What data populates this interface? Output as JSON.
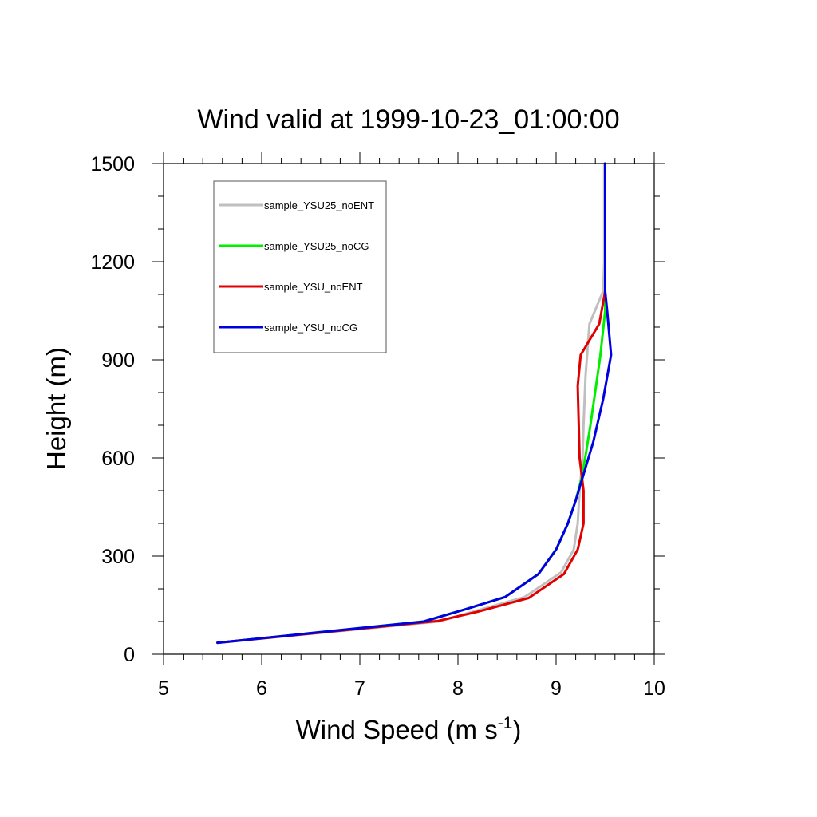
{
  "chart_data": {
    "type": "line",
    "title": "Wind valid at 1999-10-23_01:00:00",
    "xlabel": "Wind Speed (m s",
    "xlabel_superscript": "-1",
    "xlabel_suffix": ")",
    "ylabel": "Height (m)",
    "xlim": [
      5,
      10
    ],
    "ylim": [
      0,
      1500
    ],
    "xticks": [
      5,
      6,
      7,
      8,
      9,
      10
    ],
    "yticks": [
      0,
      300,
      600,
      900,
      1200,
      1500
    ],
    "grid": false,
    "legend": "top-left",
    "series": [
      {
        "name": "sample_YSU25_noENT",
        "color": "#bfbfbf",
        "points": [
          [
            5.55,
            35
          ],
          [
            7.8,
            100
          ],
          [
            8.68,
            175
          ],
          [
            9.05,
            250
          ],
          [
            9.18,
            320
          ],
          [
            9.22,
            400
          ],
          [
            9.24,
            500
          ],
          [
            9.27,
            600
          ],
          [
            9.28,
            700
          ],
          [
            9.3,
            850
          ],
          [
            9.34,
            1010
          ],
          [
            9.48,
            1110
          ],
          [
            9.49,
            1200
          ],
          [
            9.49,
            1500
          ]
        ]
      },
      {
        "name": "sample_YSU25_noCG",
        "color": "#00ee00",
        "points": [
          [
            5.55,
            35
          ],
          [
            7.65,
            100
          ],
          [
            8.05,
            135
          ],
          [
            8.48,
            175
          ],
          [
            8.82,
            245
          ],
          [
            9.0,
            320
          ],
          [
            9.12,
            400
          ],
          [
            9.2,
            470
          ],
          [
            9.27,
            550
          ],
          [
            9.35,
            700
          ],
          [
            9.45,
            910
          ],
          [
            9.5,
            1050
          ],
          [
            9.5,
            1200
          ],
          [
            9.5,
            1500
          ]
        ]
      },
      {
        "name": "sample_YSU_noENT",
        "color": "#e00000",
        "points": [
          [
            5.55,
            35
          ],
          [
            7.8,
            102
          ],
          [
            8.2,
            130
          ],
          [
            8.72,
            172
          ],
          [
            9.08,
            245
          ],
          [
            9.22,
            320
          ],
          [
            9.28,
            400
          ],
          [
            9.28,
            500
          ],
          [
            9.24,
            600
          ],
          [
            9.22,
            820
          ],
          [
            9.25,
            915
          ],
          [
            9.44,
            1010
          ],
          [
            9.5,
            1110
          ],
          [
            9.5,
            1200
          ],
          [
            9.5,
            1500
          ]
        ]
      },
      {
        "name": "sample_YSU_noCG",
        "color": "#0000e0",
        "points": [
          [
            5.55,
            35
          ],
          [
            7.65,
            100
          ],
          [
            8.05,
            135
          ],
          [
            8.48,
            175
          ],
          [
            8.82,
            245
          ],
          [
            9.0,
            320
          ],
          [
            9.12,
            400
          ],
          [
            9.2,
            470
          ],
          [
            9.27,
            540
          ],
          [
            9.38,
            650
          ],
          [
            9.48,
            780
          ],
          [
            9.56,
            915
          ],
          [
            9.52,
            1050
          ],
          [
            9.5,
            1110
          ],
          [
            9.5,
            1200
          ],
          [
            9.5,
            1500
          ]
        ]
      }
    ]
  }
}
